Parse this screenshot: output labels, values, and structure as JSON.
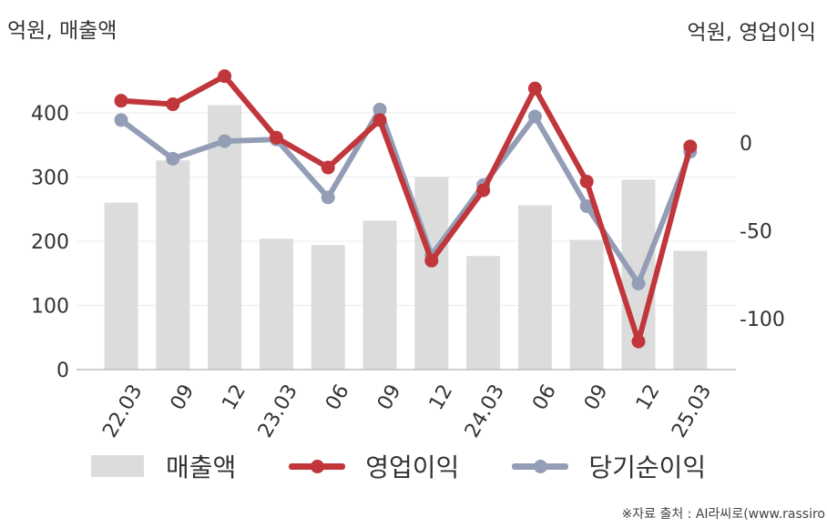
{
  "chart_data": {
    "type": "bar+line",
    "left_axis_label": "억원, 매출액",
    "right_axis_label": "억원, 영업이익",
    "categories": [
      "22.03",
      "09",
      "12",
      "23.03",
      "06",
      "09",
      "12",
      "24.03",
      "06",
      "09",
      "12",
      "25.03"
    ],
    "left_ylim": [
      0,
      460
    ],
    "left_ticks": [
      0,
      100,
      200,
      300,
      400
    ],
    "right_ylim": [
      -127,
      47
    ],
    "right_ticks": [
      0,
      -50,
      -100
    ],
    "grid": true,
    "legend_position": "bottom",
    "series": [
      {
        "name": "매출액",
        "kind": "bar",
        "axis": "left",
        "color": "#dcdcdc",
        "values": [
          260,
          326,
          412,
          204,
          194,
          232,
          300,
          177,
          256,
          202,
          296,
          185
        ]
      },
      {
        "name": "영업이익",
        "kind": "line",
        "axis": "right",
        "color": "#c0363b",
        "values": [
          24,
          22,
          38,
          3,
          -14,
          13,
          -67,
          -27,
          31,
          -22,
          -113,
          -2
        ]
      },
      {
        "name": "당기순이익",
        "kind": "line",
        "axis": "right",
        "color": "#939eb6",
        "values": [
          13,
          -9,
          1,
          2,
          -31,
          19,
          -64,
          -24,
          15,
          -36,
          -80,
          -5
        ]
      }
    ]
  },
  "source_text": "※자료 출처 : AI라씨로(www.rassiro"
}
